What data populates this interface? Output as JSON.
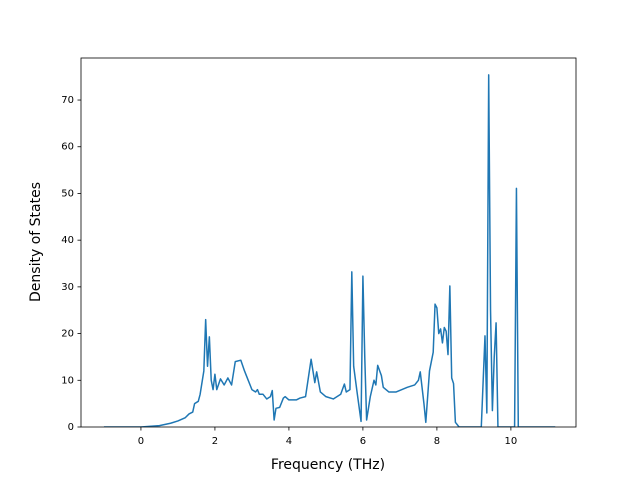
{
  "chart_data": {
    "type": "line",
    "x_label": "Frequency (THz)",
    "y_label": "Density of States",
    "x": [
      -1.0,
      0,
      0.5,
      0.8,
      1.0,
      1.2,
      1.3,
      1.4,
      1.45,
      1.55,
      1.6,
      1.7,
      1.75,
      1.8,
      1.85,
      1.9,
      1.95,
      2.0,
      2.05,
      2.15,
      2.25,
      2.35,
      2.45,
      2.55,
      2.7,
      2.8,
      2.9,
      3.0,
      3.1,
      3.15,
      3.2,
      3.3,
      3.4,
      3.5,
      3.55,
      3.6,
      3.65,
      3.75,
      3.85,
      3.9,
      4.0,
      4.2,
      4.3,
      4.45,
      4.6,
      4.7,
      4.75,
      4.85,
      5.0,
      5.2,
      5.4,
      5.5,
      5.55,
      5.65,
      5.7,
      5.75,
      5.85,
      5.95,
      6.0,
      6.05,
      6.1,
      6.2,
      6.3,
      6.35,
      6.4,
      6.5,
      6.55,
      6.7,
      6.9,
      7.2,
      7.4,
      7.5,
      7.55,
      7.65,
      7.7,
      7.8,
      7.9,
      7.95,
      8.0,
      8.05,
      8.1,
      8.15,
      8.2,
      8.25,
      8.3,
      8.35,
      8.4,
      8.45,
      8.5,
      8.6,
      9.2,
      9.3,
      9.35,
      9.4,
      9.45,
      9.5,
      9.55,
      9.6,
      9.65,
      10.1,
      10.15,
      10.2,
      11.2
    ],
    "series": [
      {
        "color": "#1f77b4",
        "values": [
          0,
          0,
          0.3,
          0.8,
          1.3,
          2.0,
          2.8,
          3.2,
          5,
          5.5,
          7,
          12,
          23,
          13,
          19.3,
          10,
          8,
          11.3,
          8,
          10.3,
          9,
          10.5,
          9,
          14,
          14.3,
          12,
          10,
          8,
          7.5,
          8,
          7,
          7,
          6,
          6.5,
          7.8,
          1.5,
          4,
          4.2,
          6.2,
          6.5,
          5.8,
          5.8,
          6.2,
          6.5,
          14.5,
          9.5,
          11.8,
          7.5,
          6.5,
          6,
          7,
          9.2,
          7.5,
          8,
          33.2,
          13,
          7,
          1.2,
          32.3,
          15,
          1.5,
          6.5,
          10,
          9,
          13.2,
          11,
          8.5,
          7.5,
          7.5,
          8.5,
          9,
          10,
          11.8,
          5,
          1,
          12,
          16,
          26.3,
          25.5,
          20,
          21,
          18,
          21.3,
          20.5,
          15.5,
          30.2,
          10.5,
          9.3,
          1,
          0,
          0,
          19.5,
          3,
          75.4,
          25,
          3.5,
          15,
          22.3,
          0,
          0,
          51.1,
          0,
          0
        ]
      }
    ],
    "xlim": [
      -1.62,
      11.76
    ],
    "xticks": [
      0,
      2,
      4,
      6,
      8,
      10
    ],
    "ylim": [
      0,
      79.0
    ],
    "yticks": [
      0,
      10,
      20,
      30,
      40,
      50,
      60,
      70
    ]
  }
}
